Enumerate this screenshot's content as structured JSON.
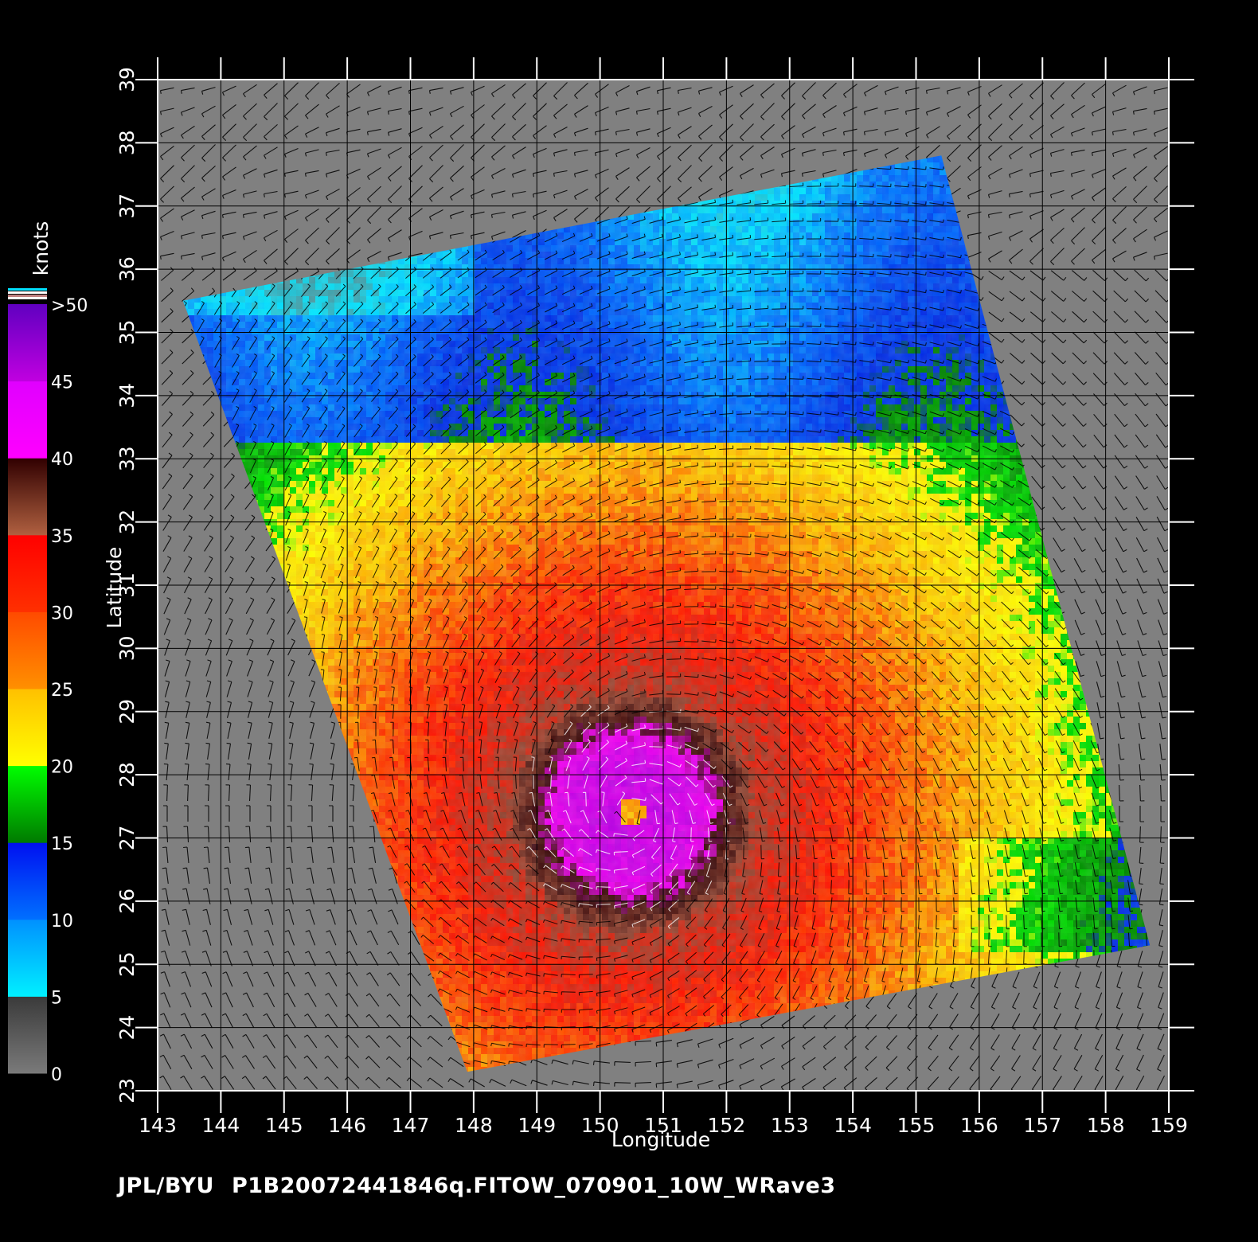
{
  "map": {
    "x_axis_label": "Longitude",
    "y_axis_label": "Latitude",
    "lon_range": [
      143,
      159
    ],
    "lat_range": [
      23,
      39
    ],
    "lon_ticks": [
      "143",
      "144",
      "145",
      "146",
      "147",
      "148",
      "149",
      "150",
      "151",
      "152",
      "153",
      "154",
      "155",
      "156",
      "157",
      "158",
      "159"
    ],
    "lat_ticks": [
      "23",
      "24",
      "25",
      "26",
      "27",
      "28",
      "29",
      "30",
      "31",
      "32",
      "33",
      "34",
      "35",
      "36",
      "37",
      "38",
      "39"
    ],
    "land_color": "#808080",
    "grid_on": true,
    "swath_corners_lonlat": [
      [
        143.4,
        35.5
      ],
      [
        155.4,
        37.8
      ],
      [
        158.7,
        25.3
      ],
      [
        147.9,
        23.3
      ]
    ],
    "storm_center_lonlat": [
      150.5,
      27.4
    ]
  },
  "colorbar": {
    "unit": "knots",
    "labels": [
      "0",
      "5",
      "10",
      "15",
      "20",
      "25",
      "30",
      "35",
      "40",
      "45",
      ">50"
    ],
    "bands": [
      {
        "from": 0,
        "to": 5,
        "colors": [
          "#7a7a7a",
          "#3a3a3a"
        ]
      },
      {
        "from": 5,
        "to": 10,
        "colors": [
          "#00f0ff",
          "#0090ff"
        ]
      },
      {
        "from": 10,
        "to": 15,
        "colors": [
          "#0070ff",
          "#0010f0"
        ]
      },
      {
        "from": 15,
        "to": 20,
        "colors": [
          "#007a00",
          "#00ff00"
        ]
      },
      {
        "from": 20,
        "to": 25,
        "colors": [
          "#ffff00",
          "#ffc000"
        ]
      },
      {
        "from": 25,
        "to": 30,
        "colors": [
          "#ff9000",
          "#ff4a00"
        ]
      },
      {
        "from": 30,
        "to": 35,
        "colors": [
          "#ff3000",
          "#ff0000"
        ]
      },
      {
        "from": 35,
        "to": 40,
        "colors": [
          "#b06040",
          "#300000"
        ]
      },
      {
        "from": 40,
        "to": 45,
        "colors": [
          "#ff00ff",
          "#e000ff"
        ]
      },
      {
        "from": 45,
        "to": 50,
        "colors": [
          "#c000e0",
          "#6000c0"
        ]
      }
    ]
  },
  "footer": {
    "source": "JPL/BYU",
    "file_id": "P1B20072441846q.FITOW_070901_10W_WRave3"
  }
}
